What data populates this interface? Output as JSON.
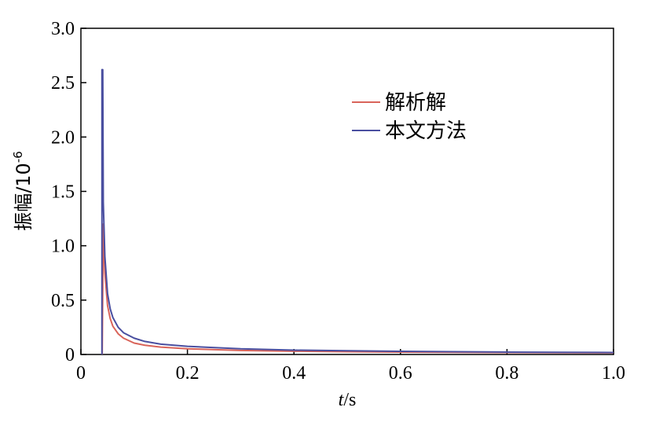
{
  "chart_data": {
    "type": "line",
    "xlabel_var": "t",
    "xlabel_unit": "/s",
    "ylabel_text": "振幅/10",
    "ylabel_sup": "-6",
    "xlim": [
      0,
      1.0
    ],
    "ylim": [
      0,
      3.0
    ],
    "x_ticks": [
      "0",
      "0.2",
      "0.4",
      "0.6",
      "0.8",
      "1.0"
    ],
    "y_ticks": [
      "0",
      "0.5",
      "1.0",
      "1.5",
      "2.0",
      "2.5",
      "3.0"
    ],
    "grid": false,
    "legend_position": "top-right",
    "series": [
      {
        "name": "解析解",
        "color": "#d9645a",
        "points": [
          [
            0.04,
            0
          ],
          [
            0.042,
            1.2
          ],
          [
            0.045,
            0.75
          ],
          [
            0.05,
            0.45
          ],
          [
            0.055,
            0.33
          ],
          [
            0.06,
            0.26
          ],
          [
            0.07,
            0.19
          ],
          [
            0.08,
            0.15
          ],
          [
            0.1,
            0.105
          ],
          [
            0.12,
            0.085
          ],
          [
            0.15,
            0.068
          ],
          [
            0.2,
            0.052
          ],
          [
            0.3,
            0.037
          ],
          [
            0.4,
            0.03
          ],
          [
            0.5,
            0.025
          ],
          [
            0.6,
            0.022
          ],
          [
            0.7,
            0.02
          ],
          [
            0.8,
            0.018
          ],
          [
            0.9,
            0.016
          ],
          [
            1.0,
            0.015
          ]
        ]
      },
      {
        "name": "本文方法",
        "color": "#4a4fa0",
        "points": [
          [
            0.0395,
            0
          ],
          [
            0.0395,
            2.62
          ],
          [
            0.041,
            2.62
          ],
          [
            0.042,
            1.4
          ],
          [
            0.045,
            0.9
          ],
          [
            0.05,
            0.56
          ],
          [
            0.055,
            0.42
          ],
          [
            0.06,
            0.34
          ],
          [
            0.07,
            0.25
          ],
          [
            0.08,
            0.2
          ],
          [
            0.1,
            0.15
          ],
          [
            0.12,
            0.12
          ],
          [
            0.15,
            0.095
          ],
          [
            0.2,
            0.075
          ],
          [
            0.3,
            0.052
          ],
          [
            0.4,
            0.04
          ],
          [
            0.5,
            0.034
          ],
          [
            0.6,
            0.029
          ],
          [
            0.7,
            0.025
          ],
          [
            0.8,
            0.022
          ],
          [
            0.9,
            0.02
          ],
          [
            1.0,
            0.018
          ]
        ]
      }
    ]
  }
}
